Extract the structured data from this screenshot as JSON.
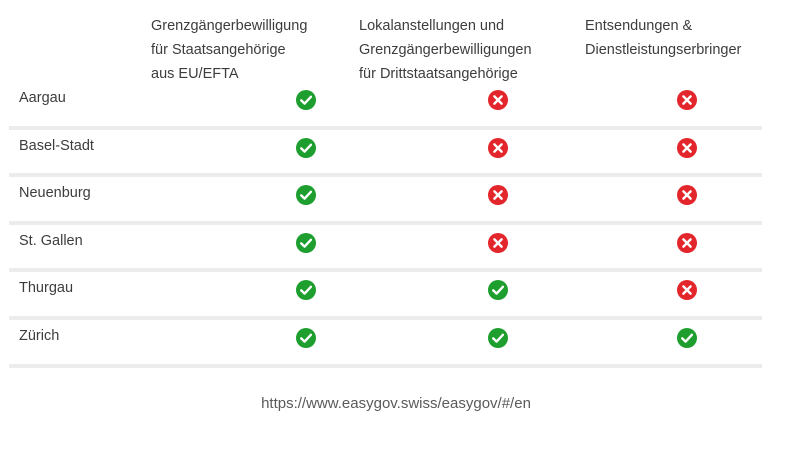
{
  "columns": [
    "Grenzgängerbewilligung\nfür Staatsangehörige\naus EU/EFTA",
    "Lokalanstellungen und\nGrenzgängerbewilligungen\nfür Drittstaatsangehörige",
    "Entsendungen &\nDienstleistungserbringer"
  ],
  "rows": [
    {
      "canton": "Aargau",
      "values": [
        "yes",
        "no",
        "no"
      ]
    },
    {
      "canton": "Basel-Stadt",
      "values": [
        "yes",
        "no",
        "no"
      ]
    },
    {
      "canton": "Neuenburg",
      "values": [
        "yes",
        "no",
        "no"
      ]
    },
    {
      "canton": "St. Gallen",
      "values": [
        "yes",
        "no",
        "no"
      ]
    },
    {
      "canton": "Thurgau",
      "values": [
        "yes",
        "yes",
        "no"
      ]
    },
    {
      "canton": "Zürich",
      "values": [
        "yes",
        "yes",
        "yes"
      ]
    }
  ],
  "source": "https://www.easygov.swiss/easygov/#/en",
  "colors": {
    "yes": "#1e9e2e",
    "no": "#e3262b",
    "divider": "#ececec"
  },
  "icons": {
    "yes": "check-circle-icon",
    "no": "x-circle-icon"
  }
}
